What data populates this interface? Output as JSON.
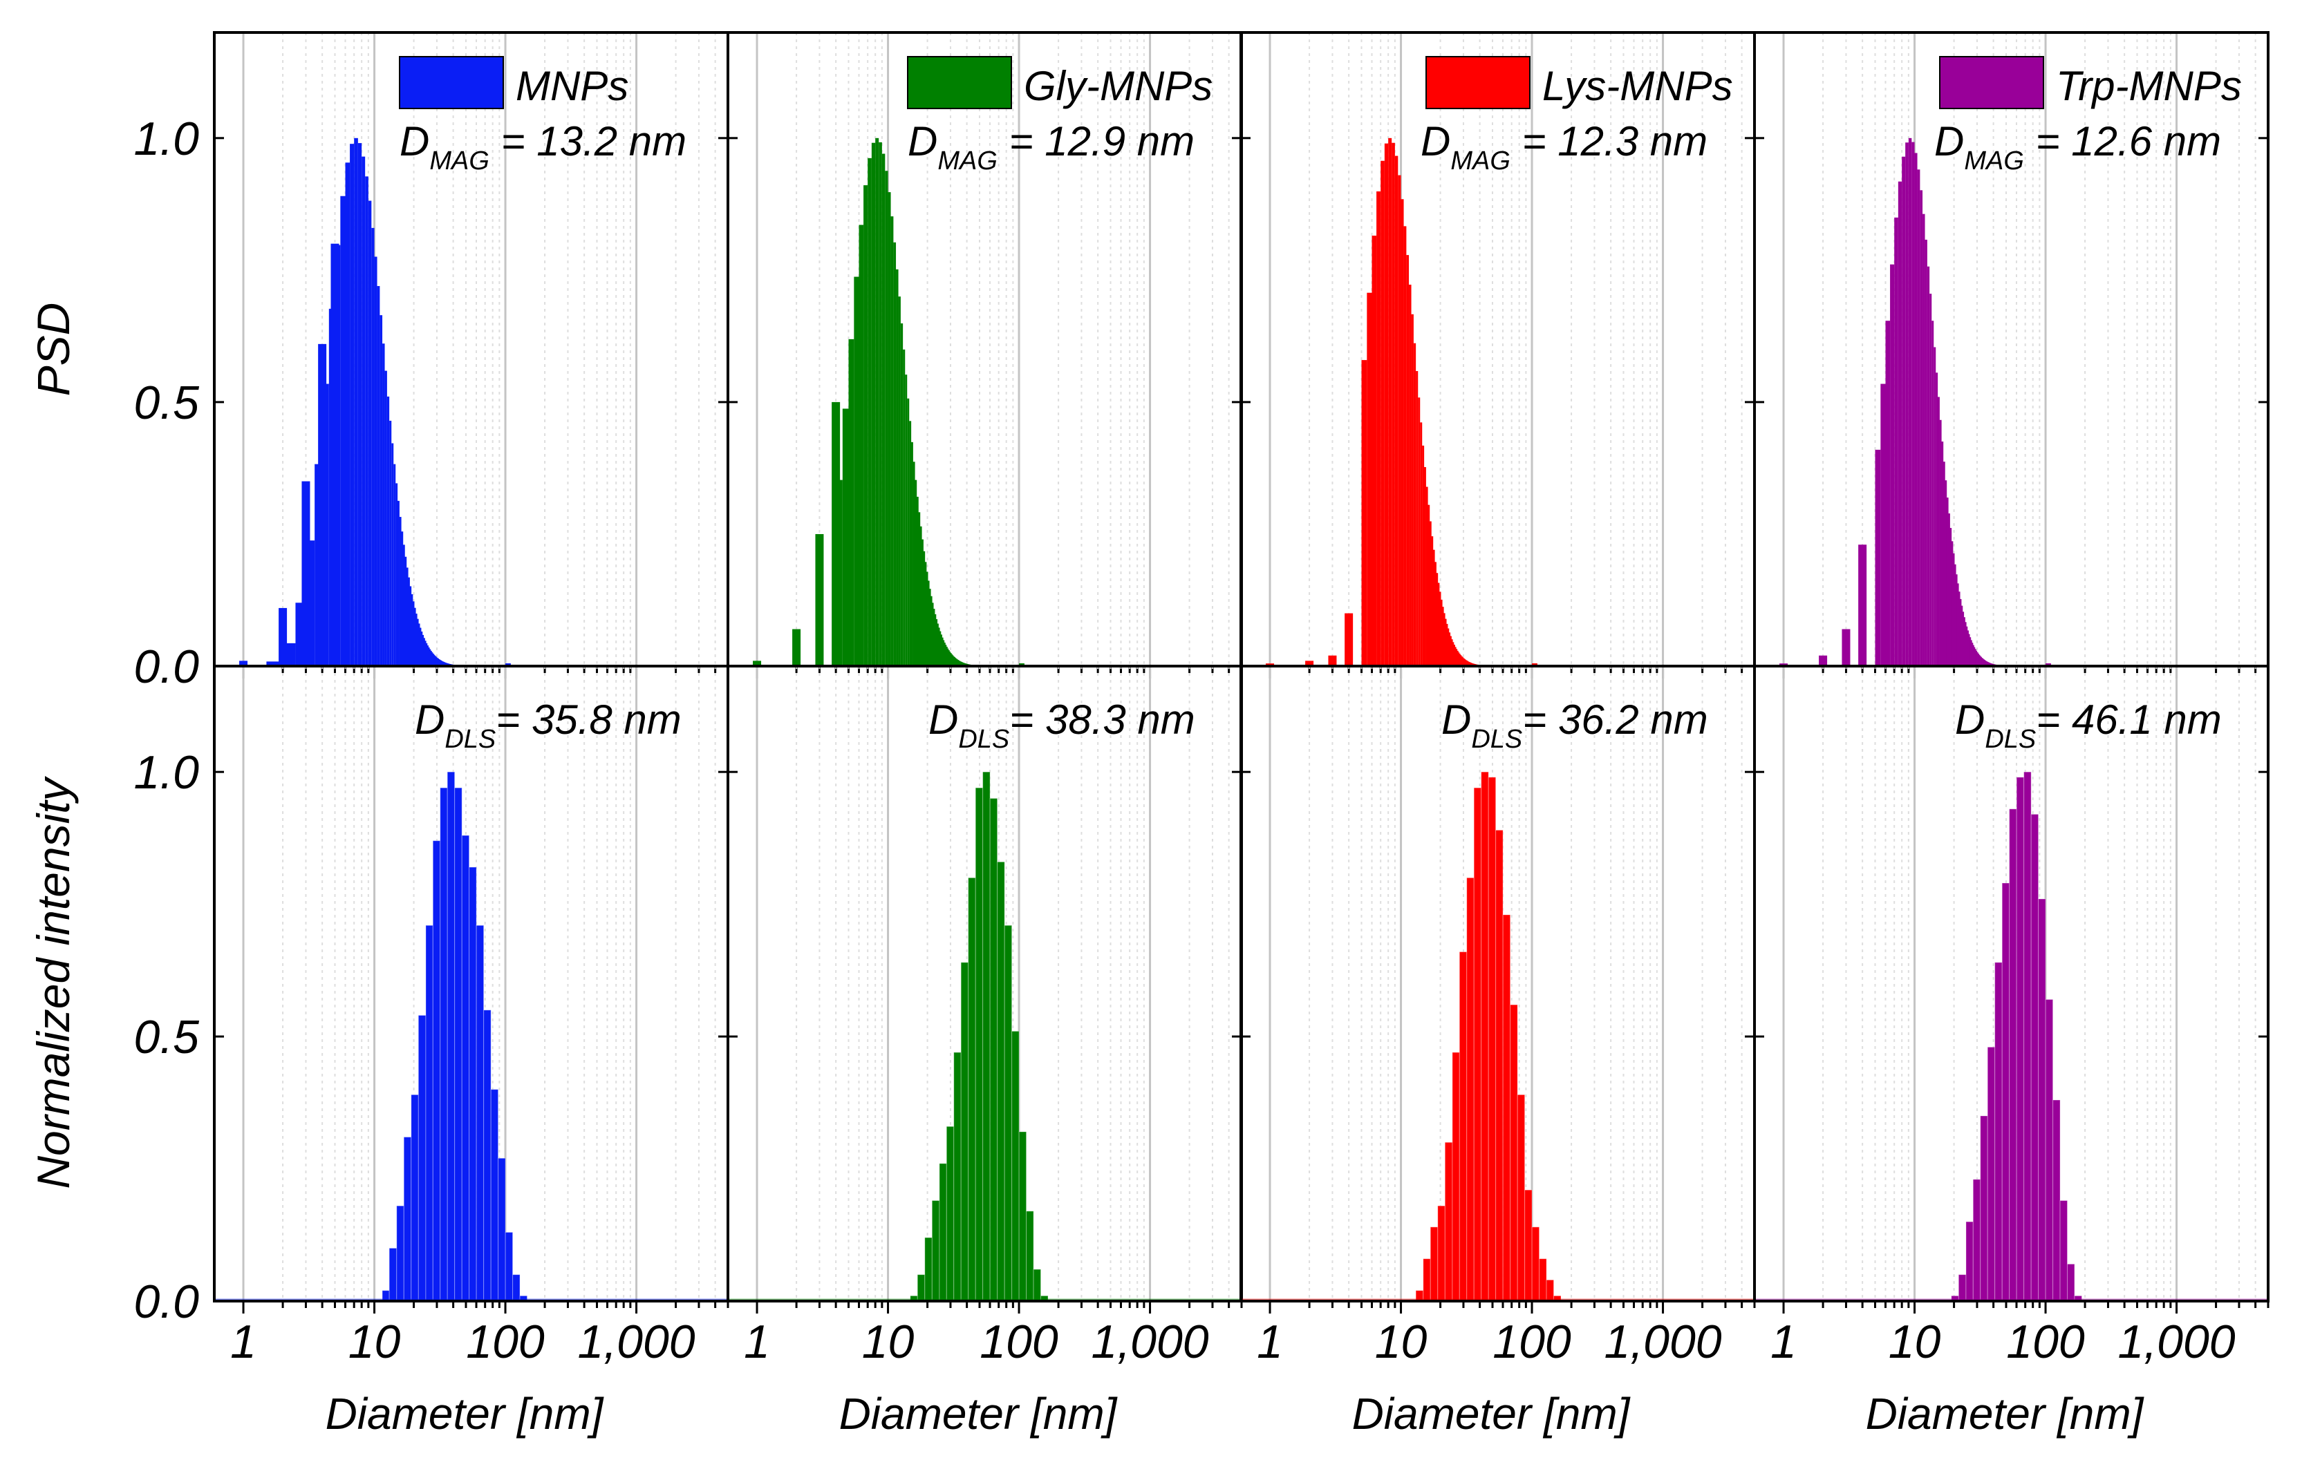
{
  "chart_data": {
    "type": "bar",
    "x_scale": "log",
    "xlim": [
      0.6,
      5000
    ],
    "ylim": [
      0,
      1.2
    ],
    "xticks": [
      {
        "value": 1,
        "label": "1"
      },
      {
        "value": 10,
        "label": "10"
      },
      {
        "value": 100,
        "label": "100"
      },
      {
        "value": 1000,
        "label": "1,000"
      }
    ],
    "yticks": [
      {
        "value": 0.0,
        "label": "0.0"
      },
      {
        "value": 0.5,
        "label": "0.5"
      },
      {
        "value": 1.0,
        "label": "1.0"
      }
    ],
    "xlabel": "Diameter [nm]",
    "row_ylabels": [
      "PSD",
      "Normalized intensity"
    ],
    "panels": [
      {
        "name": "MNPs",
        "color": "#0a1ef5",
        "legend": "MNPs",
        "mag": {
          "symbol": "D",
          "sub": "MAG",
          "value": " = 13.2 nm"
        },
        "dls": {
          "symbol": "D",
          "sub": "DLS",
          "value": "= 35.8 nm"
        },
        "psd_mode": 7.0,
        "psd_sigma": 0.5,
        "psd_bins_min": 1.0,
        "psd_bins_max": 100,
        "psd_spikes": [
          {
            "x": 1,
            "y": 0.01
          },
          {
            "x": 2,
            "y": 0.11
          },
          {
            "x": 3,
            "y": 0.35
          },
          {
            "x": 4,
            "y": 0.61
          },
          {
            "x": 5,
            "y": 0.8
          }
        ],
        "dls_x": [
          11.5,
          13.0,
          14.8,
          16.8,
          19.1,
          21.7,
          24.7,
          28.0,
          31.8,
          36.1,
          41.0,
          46.6,
          52.9,
          60.1,
          68.3,
          77.6,
          88.1,
          100.1,
          113.7,
          129.1
        ],
        "dls_y": [
          0.02,
          0.1,
          0.18,
          0.31,
          0.39,
          0.54,
          0.71,
          0.87,
          0.97,
          1.0,
          0.97,
          0.88,
          0.82,
          0.71,
          0.55,
          0.4,
          0.27,
          0.13,
          0.05,
          0.01
        ]
      },
      {
        "name": "Gly-MNPs",
        "color": "#008000",
        "legend": "Gly-MNPs",
        "mag": {
          "symbol": "D",
          "sub": "MAG",
          "value": " = 12.9 nm"
        },
        "dls": {
          "symbol": "D",
          "sub": "DLS",
          "value": "= 38.3 nm"
        },
        "psd_mode": 8.0,
        "psd_sigma": 0.48,
        "psd_bins_min": 4.0,
        "psd_bins_max": 100,
        "psd_spikes": [
          {
            "x": 1,
            "y": 0.01
          },
          {
            "x": 2,
            "y": 0.07
          },
          {
            "x": 3,
            "y": 0.25
          },
          {
            "x": 4,
            "y": 0.5
          }
        ],
        "dls_x": [
          14.8,
          16.8,
          19.1,
          21.7,
          24.7,
          28.0,
          31.8,
          36.1,
          41.0,
          46.6,
          52.9,
          60.1,
          68.3,
          77.6,
          88.1,
          100.1,
          113.7,
          129.1,
          146.6
        ],
        "dls_y": [
          0.01,
          0.05,
          0.12,
          0.19,
          0.26,
          0.33,
          0.47,
          0.64,
          0.8,
          0.97,
          1.0,
          0.95,
          0.83,
          0.71,
          0.51,
          0.32,
          0.17,
          0.06,
          0.01
        ]
      },
      {
        "name": "Lys-MNPs",
        "color": "#ff0000",
        "legend": "Lys-MNPs",
        "mag": {
          "symbol": "D",
          "sub": "MAG",
          "value": " = 12.3 nm"
        },
        "dls": {
          "symbol": "D",
          "sub": "DLS",
          "value": "= 36.2 nm"
        },
        "psd_mode": 8.0,
        "psd_sigma": 0.45,
        "psd_bins_min": 5.0,
        "psd_bins_max": 100,
        "psd_spikes": [
          {
            "x": 1,
            "y": 0.005
          },
          {
            "x": 2,
            "y": 0.01
          },
          {
            "x": 3,
            "y": 0.02
          },
          {
            "x": 4,
            "y": 0.1
          }
        ],
        "dls_x": [
          13.0,
          14.8,
          16.8,
          19.1,
          21.7,
          24.7,
          28.0,
          31.8,
          36.1,
          41.0,
          46.6,
          52.9,
          60.1,
          68.3,
          77.6,
          88.1,
          100.1,
          113.7,
          129.1,
          146.6
        ],
        "dls_y": [
          0.02,
          0.08,
          0.14,
          0.18,
          0.3,
          0.47,
          0.66,
          0.8,
          0.97,
          1.0,
          0.99,
          0.89,
          0.73,
          0.56,
          0.39,
          0.21,
          0.14,
          0.08,
          0.04,
          0.01
        ]
      },
      {
        "name": "Trp-MNPs",
        "color": "#990099",
        "legend": "Trp-MNPs",
        "mag": {
          "symbol": "D",
          "sub": "MAG",
          "value": " = 12.6 nm"
        },
        "dls": {
          "symbol": "D",
          "sub": "DLS",
          "value": "= 46.1 nm"
        },
        "psd_mode": 9.0,
        "psd_sigma": 0.44,
        "psd_bins_min": 5.0,
        "psd_bins_max": 100,
        "psd_spikes": [
          {
            "x": 1,
            "y": 0.005
          },
          {
            "x": 2,
            "y": 0.02
          },
          {
            "x": 3,
            "y": 0.07
          },
          {
            "x": 4,
            "y": 0.23
          }
        ],
        "dls_x": [
          19.1,
          21.7,
          24.7,
          28.0,
          31.8,
          36.1,
          41.0,
          46.6,
          52.9,
          60.1,
          68.3,
          77.6,
          88.1,
          100.1,
          113.7,
          129.1,
          146.6,
          166.4
        ],
        "dls_y": [
          0.01,
          0.05,
          0.15,
          0.23,
          0.35,
          0.48,
          0.64,
          0.79,
          0.93,
          0.99,
          1.0,
          0.92,
          0.76,
          0.57,
          0.38,
          0.19,
          0.07,
          0.01
        ]
      }
    ]
  }
}
